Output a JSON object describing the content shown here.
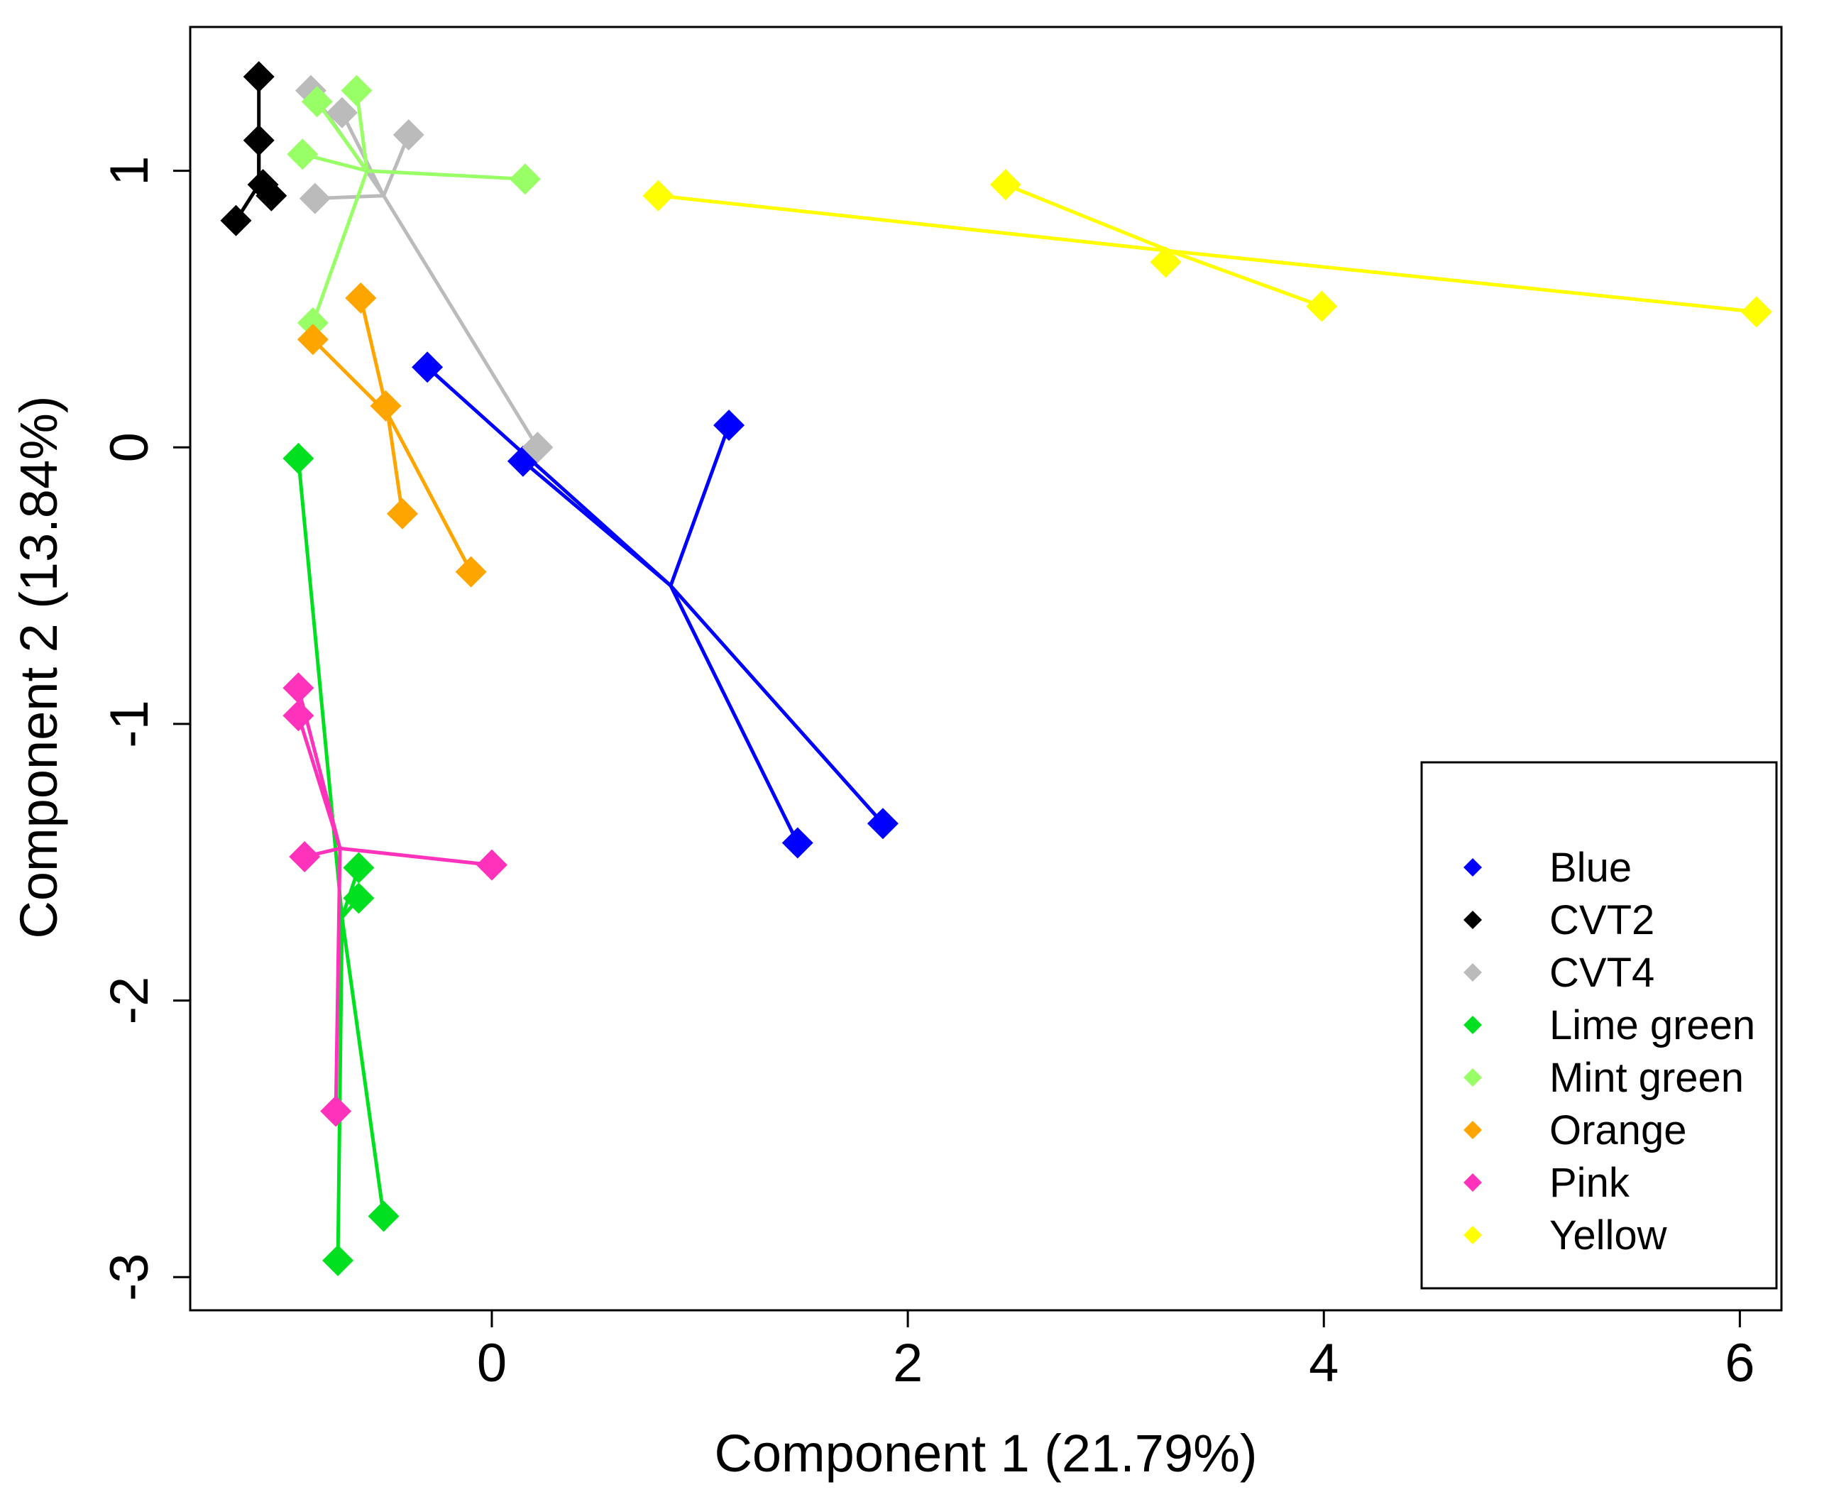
{
  "chart_data": {
    "type": "scatter",
    "title": "",
    "xlabel": "Component 1 (21.79%)",
    "ylabel": "Component 2 (13.84%)",
    "xlim": [
      -1.45,
      6.2
    ],
    "ylim": [
      -3.12,
      1.52
    ],
    "xticks": [
      0,
      2,
      4,
      6
    ],
    "yticks": [
      1,
      0,
      -1,
      -2,
      -3
    ],
    "xtick_labels": [
      "0",
      "2",
      "4",
      "6"
    ],
    "ytick_labels": [
      "1",
      "0",
      "-1",
      "-2",
      "-3"
    ],
    "grid": false,
    "legend_position": "bottom-right",
    "series": [
      {
        "name": "Blue",
        "color": "#0000ff",
        "centroid": [
          0.86,
          -0.5
        ],
        "points": [
          [
            -0.31,
            0.29
          ],
          [
            0.15,
            -0.05
          ],
          [
            1.14,
            0.08
          ],
          [
            1.47,
            -1.43
          ],
          [
            1.88,
            -1.36
          ]
        ]
      },
      {
        "name": "CVT2",
        "color": "#000000",
        "centroid": [
          -1.12,
          0.95
        ],
        "points": [
          [
            -1.12,
            1.34
          ],
          [
            -1.12,
            1.11
          ],
          [
            -1.23,
            0.82
          ],
          [
            -1.06,
            0.91
          ],
          [
            -1.1,
            0.95
          ]
        ]
      },
      {
        "name": "CVT4",
        "color": "#bbbbbb",
        "centroid": [
          -0.52,
          0.91
        ],
        "points": [
          [
            -0.87,
            1.29
          ],
          [
            -0.72,
            1.21
          ],
          [
            -0.4,
            1.13
          ],
          [
            -0.85,
            0.9
          ],
          [
            0.22,
            0.0
          ]
        ]
      },
      {
        "name": "Lime green",
        "color": "#00e020",
        "centroid": [
          -0.72,
          -1.7
        ],
        "points": [
          [
            -0.93,
            -0.04
          ],
          [
            -0.64,
            -1.52
          ],
          [
            -0.64,
            -1.63
          ],
          [
            -0.52,
            -2.78
          ],
          [
            -0.74,
            -2.94
          ]
        ]
      },
      {
        "name": "Mint green",
        "color": "#99ff66",
        "centroid": [
          -0.6,
          1.0
        ],
        "points": [
          [
            -0.65,
            1.29
          ],
          [
            -0.84,
            1.25
          ],
          [
            -0.91,
            1.06
          ],
          [
            0.16,
            0.97
          ],
          [
            -0.86,
            0.45
          ]
        ]
      },
      {
        "name": "Orange",
        "color": "#ffa500",
        "centroid": [
          -0.5,
          0.12
        ],
        "points": [
          [
            -0.63,
            0.54
          ],
          [
            -0.86,
            0.39
          ],
          [
            -0.51,
            0.15
          ],
          [
            -0.43,
            -0.24
          ],
          [
            -0.1,
            -0.45
          ]
        ]
      },
      {
        "name": "Pink",
        "color": "#ff33bb",
        "centroid": [
          -0.73,
          -1.45
        ],
        "points": [
          [
            -0.93,
            -0.87
          ],
          [
            -0.93,
            -0.97
          ],
          [
            -0.9,
            -1.48
          ],
          [
            0.0,
            -1.51
          ],
          [
            -0.75,
            -2.4
          ]
        ]
      },
      {
        "name": "Yellow",
        "color": "#ffff00",
        "centroid": [
          3.26,
          0.71
        ],
        "points": [
          [
            0.8,
            0.91
          ],
          [
            2.47,
            0.95
          ],
          [
            3.24,
            0.67
          ],
          [
            3.99,
            0.51
          ],
          [
            6.08,
            0.49
          ]
        ]
      }
    ]
  }
}
